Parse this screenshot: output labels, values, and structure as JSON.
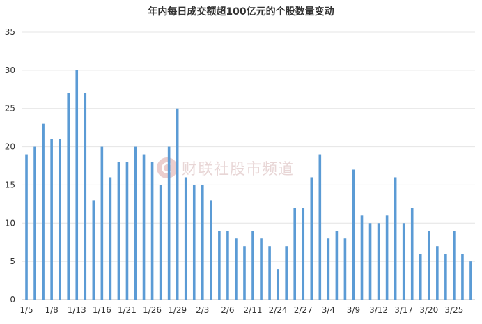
{
  "chart_data": {
    "type": "bar",
    "title": "年内每日成交额超100亿元的个股数量变动",
    "xlabel": "",
    "ylabel": "",
    "ylim": [
      0,
      35
    ],
    "yticks": [
      0,
      5,
      10,
      15,
      20,
      25,
      30,
      35
    ],
    "grid": true,
    "legend": "none",
    "bar_color": "#5b9bd5",
    "values": [
      19,
      20,
      23,
      21,
      21,
      27,
      30,
      27,
      13,
      20,
      16,
      18,
      18,
      20,
      19,
      18,
      15,
      20,
      25,
      16,
      15,
      15,
      13,
      9,
      9,
      8,
      7,
      9,
      8,
      7,
      4,
      7,
      12,
      12,
      16,
      19,
      8,
      9,
      8,
      17,
      11,
      10,
      10,
      11,
      16,
      10,
      12,
      6,
      9,
      7,
      6,
      9,
      6,
      5
    ],
    "tick_labels": [
      {
        "index": 0,
        "label": "1/5"
      },
      {
        "index": 3,
        "label": "1/8"
      },
      {
        "index": 6,
        "label": "1/13"
      },
      {
        "index": 9,
        "label": "1/16"
      },
      {
        "index": 12,
        "label": "1/21"
      },
      {
        "index": 15,
        "label": "1/26"
      },
      {
        "index": 18,
        "label": "1/29"
      },
      {
        "index": 21,
        "label": "2/3"
      },
      {
        "index": 24,
        "label": "2/6"
      },
      {
        "index": 27,
        "label": "2/11"
      },
      {
        "index": 30,
        "label": "2/24"
      },
      {
        "index": 33,
        "label": "2/27"
      },
      {
        "index": 36,
        "label": "3/4"
      },
      {
        "index": 39,
        "label": "3/9"
      },
      {
        "index": 42,
        "label": "3/12"
      },
      {
        "index": 45,
        "label": "3/17"
      },
      {
        "index": 48,
        "label": "3/20"
      },
      {
        "index": 51,
        "label": "3/25"
      }
    ]
  },
  "watermark": {
    "logo_icon": "cls-logo-icon",
    "text": "财联社股市频道"
  }
}
